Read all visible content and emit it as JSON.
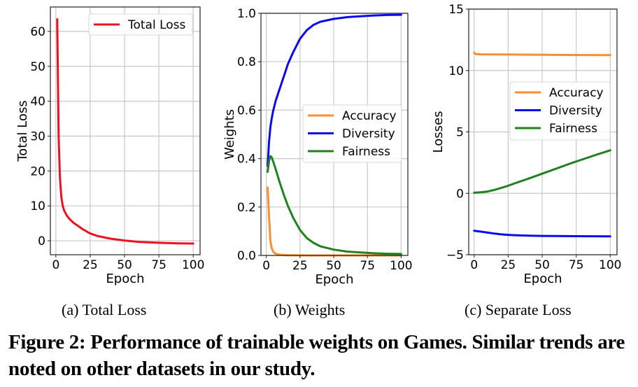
{
  "subcaptions": [
    "(a)  Total Loss",
    "(b)  Weights",
    "(c)  Separate Loss"
  ],
  "caption": "Figure 2: Performance of trainable weights on Games. Similar trends are noted on other datasets in our study.",
  "chart_data": [
    {
      "type": "line",
      "title": "Total Loss",
      "xlabel": "Epoch",
      "ylabel": "Total Loss",
      "xlim": [
        -4,
        105
      ],
      "ylim": [
        -4,
        67
      ],
      "xticks": [
        0,
        25,
        50,
        75,
        100
      ],
      "yticks": [
        0,
        10,
        20,
        30,
        40,
        50,
        60
      ],
      "grid": true,
      "legend": "top-right",
      "series": [
        {
          "name": "Total Loss",
          "color": "#ee1122",
          "x": [
            1,
            2,
            3,
            4,
            5,
            6,
            8,
            10,
            13,
            16,
            20,
            25,
            30,
            40,
            50,
            60,
            70,
            80,
            90,
            100
          ],
          "y": [
            63.5,
            30,
            18,
            12.5,
            10,
            8.7,
            7.2,
            6.2,
            5.1,
            4.3,
            3.2,
            2.1,
            1.4,
            0.6,
            0.1,
            -0.3,
            -0.5,
            -0.65,
            -0.75,
            -0.8
          ]
        }
      ]
    },
    {
      "type": "line",
      "title": "Weights",
      "xlabel": "Epoch",
      "ylabel": "Weights",
      "xlim": [
        -4,
        105
      ],
      "ylim": [
        0.0,
        1.0
      ],
      "xticks": [
        0,
        25,
        50,
        75,
        100
      ],
      "yticks": [
        0.0,
        0.2,
        0.4,
        0.6,
        0.8,
        1.0
      ],
      "ytick_labels": [
        "0.0",
        "0.2",
        "0.4",
        "0.6",
        "0.8",
        "1.0"
      ],
      "grid": true,
      "legend": "center-right",
      "series": [
        {
          "name": "Accuracy",
          "color": "#ff8c2e",
          "x": [
            1,
            2,
            3,
            4,
            5,
            6,
            8,
            10,
            15,
            20,
            30,
            50,
            75,
            100
          ],
          "y": [
            0.28,
            0.16,
            0.06,
            0.03,
            0.017,
            0.01,
            0.005,
            0.003,
            0.001,
            0.0005,
            0.0,
            0.0,
            0.0,
            0.0
          ]
        },
        {
          "name": "Diversity",
          "color": "#0a0aee",
          "x": [
            1,
            2,
            3,
            4,
            5,
            7,
            10,
            13,
            16,
            20,
            25,
            30,
            35,
            40,
            50,
            60,
            70,
            80,
            90,
            100
          ],
          "y": [
            0.37,
            0.47,
            0.53,
            0.565,
            0.595,
            0.64,
            0.69,
            0.74,
            0.79,
            0.84,
            0.895,
            0.93,
            0.952,
            0.965,
            0.977,
            0.984,
            0.988,
            0.991,
            0.993,
            0.994
          ]
        },
        {
          "name": "Fairness",
          "color": "#22801e",
          "x": [
            1,
            2,
            3,
            4,
            5,
            7,
            10,
            13,
            16,
            20,
            25,
            30,
            35,
            40,
            50,
            60,
            70,
            80,
            90,
            100
          ],
          "y": [
            0.345,
            0.39,
            0.41,
            0.405,
            0.39,
            0.355,
            0.3,
            0.25,
            0.205,
            0.155,
            0.105,
            0.072,
            0.052,
            0.038,
            0.024,
            0.016,
            0.012,
            0.009,
            0.007,
            0.006
          ]
        }
      ]
    },
    {
      "type": "line",
      "title": "Separate Loss",
      "xlabel": "Epoch",
      "ylabel": "Losses",
      "xlim": [
        -4,
        105
      ],
      "ylim": [
        -5,
        15
      ],
      "xticks": [
        0,
        25,
        50,
        75,
        100
      ],
      "yticks": [
        -5,
        0,
        5,
        10,
        15
      ],
      "ytick_labels": [
        "−5",
        "0",
        "5",
        "10",
        "15"
      ],
      "grid": true,
      "legend": "center-right",
      "series": [
        {
          "name": "Accuracy",
          "color": "#ff8c2e",
          "x": [
            0,
            1,
            2,
            5,
            25,
            50,
            75,
            100
          ],
          "y": [
            11.45,
            11.35,
            11.33,
            11.32,
            11.3,
            11.28,
            11.26,
            11.25
          ]
        },
        {
          "name": "Diversity",
          "color": "#0a0aee",
          "x": [
            0,
            5,
            10,
            15,
            20,
            25,
            30,
            40,
            50,
            60,
            75,
            100
          ],
          "y": [
            -3.05,
            -3.12,
            -3.2,
            -3.28,
            -3.34,
            -3.38,
            -3.41,
            -3.45,
            -3.47,
            -3.48,
            -3.49,
            -3.5
          ]
        },
        {
          "name": "Fairness",
          "color": "#22801e",
          "x": [
            0,
            5,
            10,
            15,
            20,
            25,
            30,
            40,
            50,
            60,
            70,
            80,
            90,
            100
          ],
          "y": [
            0.05,
            0.08,
            0.15,
            0.28,
            0.45,
            0.62,
            0.82,
            1.2,
            1.6,
            2.0,
            2.4,
            2.78,
            3.15,
            3.5
          ]
        }
      ]
    }
  ]
}
